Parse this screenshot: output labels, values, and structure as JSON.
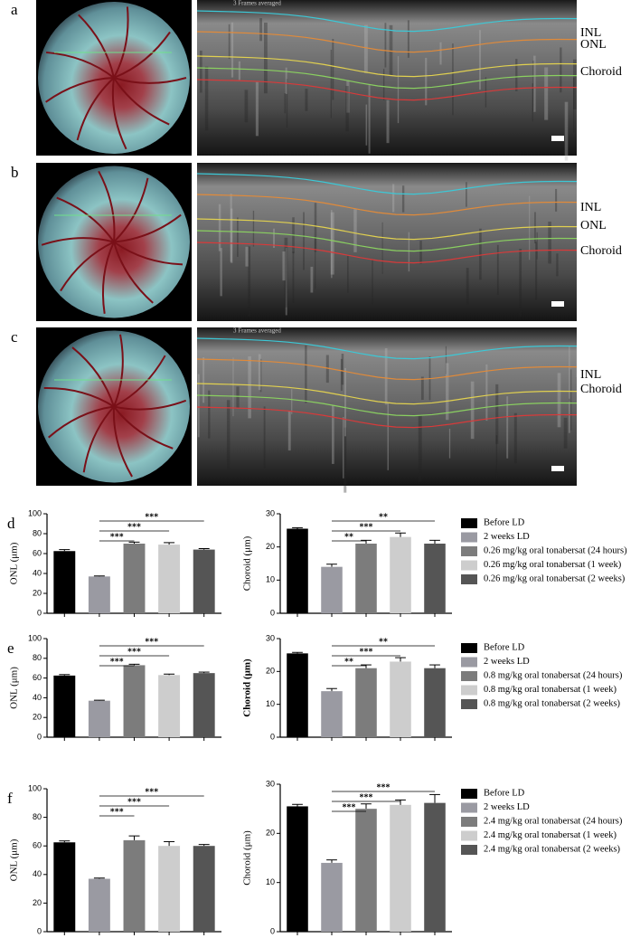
{
  "panels": [
    {
      "label": "a",
      "overlay": "3 Frames averaged",
      "layers": [
        "INL",
        "ONL",
        "Choroid"
      ]
    },
    {
      "label": "b",
      "layers": [
        "INL",
        "ONL",
        "Choroid"
      ]
    },
    {
      "label": "c",
      "overlay": "3 Frames averaged",
      "layers": [
        "INL",
        "Choroid"
      ]
    }
  ],
  "chart_data": [
    {
      "type": "bar",
      "label": "d",
      "ylabel": "ONL (μm)",
      "categories": [
        null,
        null,
        null,
        null,
        null
      ],
      "values": [
        62.5,
        37,
        70,
        69,
        64
      ],
      "errors": [
        1.5,
        0.5,
        1.5,
        2,
        1
      ],
      "colors": [
        "#000000",
        "#9a9aa2",
        "#7c7c7c",
        "#cdcdcd",
        "#555555"
      ],
      "ylim": [
        0,
        100
      ],
      "yticks": [
        0,
        20,
        40,
        60,
        80,
        100
      ],
      "annotations": [
        {
          "text": "***",
          "bracket": [
            1,
            2
          ]
        },
        {
          "text": "***",
          "bracket": [
            1,
            3
          ]
        },
        {
          "text": "***",
          "bracket": [
            1,
            4
          ]
        }
      ]
    },
    {
      "type": "bar",
      "ylabel": "Choroid (μm)",
      "categories": [
        null,
        null,
        null,
        null,
        null
      ],
      "values": [
        25.5,
        14,
        21,
        23,
        21
      ],
      "errors": [
        0.3,
        0.8,
        1,
        1.2,
        1
      ],
      "colors": [
        "#000000",
        "#9a9aa2",
        "#7c7c7c",
        "#cdcdcd",
        "#555555"
      ],
      "ylim": [
        0,
        30
      ],
      "yticks": [
        0,
        10,
        20,
        30
      ],
      "annotations": [
        {
          "text": "**",
          "bracket": [
            1,
            2
          ]
        },
        {
          "text": "***",
          "bracket": [
            1,
            3
          ]
        },
        {
          "text": "**",
          "bracket": [
            1,
            4
          ]
        }
      ],
      "legend": [
        "Before LD",
        "2 weeks LD",
        "0.26 mg/kg oral tonabersat (24 hours)",
        "0.26 mg/kg oral tonabersat (1 week)",
        "0.26 mg/kg oral tonabersat (2 weeks)"
      ]
    },
    {
      "type": "bar",
      "label": "e",
      "ylabel": "ONL (μm)",
      "categories": [
        null,
        null,
        null,
        null,
        null
      ],
      "values": [
        62.5,
        37,
        73,
        63,
        65
      ],
      "errors": [
        1,
        0.5,
        1,
        1,
        1
      ],
      "colors": [
        "#000000",
        "#9a9aa2",
        "#7c7c7c",
        "#cdcdcd",
        "#555555"
      ],
      "ylim": [
        0,
        100
      ],
      "yticks": [
        0,
        20,
        40,
        60,
        80,
        100
      ],
      "annotations": [
        {
          "text": "***",
          "bracket": [
            1,
            2
          ]
        },
        {
          "text": "***",
          "bracket": [
            1,
            3
          ]
        },
        {
          "text": "***",
          "bracket": [
            1,
            4
          ]
        }
      ]
    },
    {
      "type": "bar",
      "ylabel": "Choroid (μm)",
      "ylabel_bold": true,
      "categories": [
        null,
        null,
        null,
        null,
        null
      ],
      "values": [
        25.5,
        14,
        21,
        23,
        21
      ],
      "errors": [
        0.3,
        0.8,
        1,
        1.2,
        1
      ],
      "colors": [
        "#000000",
        "#9a9aa2",
        "#7c7c7c",
        "#cdcdcd",
        "#555555"
      ],
      "ylim": [
        0,
        30
      ],
      "yticks": [
        0,
        10,
        20,
        30
      ],
      "annotations": [
        {
          "text": "**",
          "bracket": [
            1,
            2
          ]
        },
        {
          "text": "***",
          "bracket": [
            1,
            3
          ]
        },
        {
          "text": "**",
          "bracket": [
            1,
            4
          ]
        }
      ],
      "legend": [
        "Before LD",
        "2 weeks LD",
        "0.8 mg/kg oral tonabersat (24 hours)",
        "0.8 mg/kg oral tonabersat (1 week)",
        "0.8 mg/kg oral tonabersat (2 weeks)"
      ]
    },
    {
      "type": "bar",
      "label": "f",
      "ylabel": "ONL (μm)",
      "categories": [
        null,
        null,
        null,
        null,
        null
      ],
      "values": [
        62.5,
        37,
        64,
        60,
        60
      ],
      "errors": [
        1,
        0.5,
        3,
        3,
        1
      ],
      "colors": [
        "#000000",
        "#9a9aa2",
        "#7c7c7c",
        "#cdcdcd",
        "#555555"
      ],
      "ylim": [
        0,
        100
      ],
      "yticks": [
        0,
        20,
        40,
        60,
        80,
        100
      ],
      "annotations": [
        {
          "text": "***",
          "bracket": [
            1,
            2
          ]
        },
        {
          "text": "***",
          "bracket": [
            1,
            3
          ]
        },
        {
          "text": "***",
          "bracket": [
            1,
            4
          ]
        }
      ]
    },
    {
      "type": "bar",
      "ylabel": "Choroid (μm)",
      "categories": [
        null,
        null,
        null,
        null,
        null
      ],
      "values": [
        25.5,
        14,
        25,
        25.8,
        26.2
      ],
      "errors": [
        0.4,
        0.6,
        1,
        1,
        1.7
      ],
      "colors": [
        "#000000",
        "#9a9aa2",
        "#7c7c7c",
        "#cdcdcd",
        "#555555"
      ],
      "ylim": [
        0,
        30
      ],
      "yticks": [
        0,
        10,
        20,
        30
      ],
      "annotations": [
        {
          "text": "***",
          "bracket": [
            1,
            2
          ]
        },
        {
          "text": "***",
          "bracket": [
            1,
            3
          ]
        },
        {
          "text": "***",
          "bracket": [
            1,
            4
          ]
        }
      ],
      "legend": [
        "Before LD",
        "2 weeks LD",
        "2.4 mg/kg oral tonabersat (24 hours)",
        "2.4 mg/kg oral tonabersat (1 week)",
        "2.4 mg/kg oral tonabersat (2 weeks)"
      ]
    }
  ]
}
